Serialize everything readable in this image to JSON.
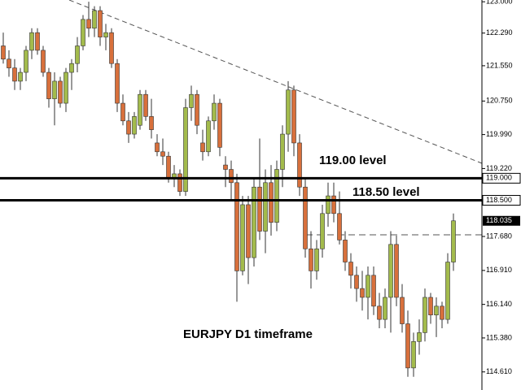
{
  "chart_data": {
    "type": "candlestick",
    "annotations": [
      "119.00 level",
      "118.50 level",
      "EURJPY D1 timeframe"
    ],
    "up_color": "#a3bb4c",
    "down_color": "#d8703c",
    "ylim": [
      114.2,
      123.04
    ],
    "yticks": [
      {
        "value": 123.0,
        "label": "123.000"
      },
      {
        "value": 122.29,
        "label": "122.290"
      },
      {
        "value": 121.55,
        "label": "121.550"
      },
      {
        "value": 120.75,
        "label": "120.750"
      },
      {
        "value": 119.99,
        "label": "119.990"
      },
      {
        "value": 119.22,
        "label": "119.220"
      },
      {
        "value": 117.68,
        "label": "117.680"
      },
      {
        "value": 116.91,
        "label": "116.910"
      },
      {
        "value": 116.14,
        "label": "116.140"
      },
      {
        "value": 115.38,
        "label": "115.380"
      },
      {
        "value": 114.61,
        "label": "114.610"
      }
    ],
    "levels": [
      {
        "value": 119.0,
        "label": "119.000"
      },
      {
        "value": 118.5,
        "label": "118.500"
      }
    ],
    "current_price": {
      "value": 118.035,
      "label": "118.035"
    },
    "ohlc": [
      [
        122.0,
        122.3,
        121.6,
        121.7
      ],
      [
        121.7,
        121.9,
        121.3,
        121.5
      ],
      [
        121.5,
        121.7,
        121.0,
        121.2
      ],
      [
        121.2,
        121.5,
        121.0,
        121.4
      ],
      [
        121.4,
        122.0,
        121.2,
        121.9
      ],
      [
        121.9,
        122.4,
        121.7,
        122.3
      ],
      [
        122.3,
        122.4,
        121.8,
        121.9
      ],
      [
        121.9,
        122.0,
        121.3,
        121.4
      ],
      [
        121.4,
        121.5,
        120.6,
        120.8
      ],
      [
        120.8,
        121.4,
        120.2,
        121.2
      ],
      [
        121.2,
        121.3,
        120.6,
        120.7
      ],
      [
        120.7,
        121.5,
        120.5,
        121.4
      ],
      [
        121.4,
        121.7,
        121.0,
        121.6
      ],
      [
        121.6,
        122.2,
        121.4,
        122.0
      ],
      [
        122.0,
        122.7,
        121.9,
        122.6
      ],
      [
        122.6,
        123.0,
        122.2,
        122.4
      ],
      [
        122.4,
        122.9,
        122.2,
        122.8
      ],
      [
        122.8,
        122.9,
        122.0,
        122.2
      ],
      [
        122.2,
        122.5,
        121.9,
        122.3
      ],
      [
        122.3,
        122.4,
        121.5,
        121.6
      ],
      [
        121.6,
        121.7,
        120.5,
        120.7
      ],
      [
        120.7,
        120.9,
        120.2,
        120.3
      ],
      [
        120.3,
        120.5,
        119.8,
        120.0
      ],
      [
        120.0,
        120.5,
        119.9,
        120.4
      ],
      [
        120.2,
        121.0,
        120.1,
        120.9
      ],
      [
        120.9,
        121.0,
        120.3,
        120.4
      ],
      [
        120.4,
        120.8,
        119.9,
        120.1
      ],
      [
        119.8,
        120.0,
        119.5,
        119.6
      ],
      [
        119.6,
        119.9,
        119.3,
        119.5
      ],
      [
        119.5,
        119.6,
        118.9,
        119.0
      ],
      [
        119.0,
        119.3,
        118.8,
        119.1
      ],
      [
        119.1,
        119.2,
        118.6,
        118.7
      ],
      [
        118.7,
        120.8,
        118.6,
        120.6
      ],
      [
        120.6,
        121.1,
        120.3,
        120.9
      ],
      [
        120.9,
        121.0,
        120.0,
        120.2
      ],
      [
        119.8,
        120.1,
        119.4,
        119.6
      ],
      [
        119.6,
        120.4,
        119.5,
        120.3
      ],
      [
        120.3,
        120.9,
        120.1,
        120.7
      ],
      [
        120.7,
        120.8,
        119.5,
        119.7
      ],
      [
        119.3,
        119.5,
        118.8,
        119.2
      ],
      [
        119.2,
        119.4,
        118.5,
        118.9
      ],
      [
        118.9,
        119.1,
        116.2,
        116.9
      ],
      [
        116.9,
        118.6,
        116.8,
        118.4
      ],
      [
        118.4,
        118.6,
        116.6,
        117.2
      ],
      [
        117.2,
        119.0,
        117.0,
        118.8
      ],
      [
        118.8,
        119.9,
        117.6,
        117.8
      ],
      [
        117.8,
        119.2,
        117.3,
        118.9
      ],
      [
        118.9,
        119.3,
        117.7,
        118.0
      ],
      [
        118.0,
        119.4,
        117.8,
        119.2
      ],
      [
        119.2,
        120.2,
        118.8,
        120.0
      ],
      [
        120.0,
        121.2,
        119.6,
        121.0
      ],
      [
        121.0,
        121.1,
        119.5,
        119.8
      ],
      [
        119.8,
        120.0,
        118.6,
        118.8
      ],
      [
        118.8,
        119.0,
        117.2,
        117.4
      ],
      [
        117.4,
        117.8,
        116.5,
        116.9
      ],
      [
        116.9,
        117.6,
        116.7,
        117.4
      ],
      [
        117.4,
        118.4,
        117.2,
        118.2
      ],
      [
        118.2,
        118.9,
        117.9,
        118.6
      ],
      [
        118.6,
        118.9,
        118.0,
        118.2
      ],
      [
        118.2,
        118.7,
        117.5,
        117.6
      ],
      [
        117.6,
        117.8,
        116.9,
        117.1
      ],
      [
        117.1,
        117.3,
        116.5,
        116.8
      ],
      [
        116.8,
        117.0,
        116.2,
        116.5
      ],
      [
        116.5,
        116.9,
        116.0,
        116.3
      ],
      [
        116.3,
        117.0,
        115.8,
        116.8
      ],
      [
        116.8,
        117.0,
        115.9,
        116.1
      ],
      [
        116.1,
        116.4,
        115.6,
        115.8
      ],
      [
        115.8,
        116.5,
        115.6,
        116.3
      ],
      [
        116.3,
        117.8,
        115.5,
        117.5
      ],
      [
        117.5,
        117.7,
        116.1,
        116.3
      ],
      [
        116.3,
        116.6,
        115.5,
        115.7
      ],
      [
        115.7,
        116.0,
        114.5,
        114.7
      ],
      [
        114.7,
        115.5,
        114.5,
        115.3
      ],
      [
        115.3,
        115.8,
        115.0,
        115.5
      ],
      [
        115.5,
        116.5,
        115.3,
        116.3
      ],
      [
        116.3,
        116.4,
        115.7,
        115.9
      ],
      [
        115.9,
        116.3,
        115.4,
        116.1
      ],
      [
        116.1,
        116.2,
        115.6,
        115.8
      ],
      [
        115.8,
        117.3,
        115.7,
        117.1
      ],
      [
        117.1,
        118.2,
        116.9,
        118.035
      ]
    ]
  }
}
